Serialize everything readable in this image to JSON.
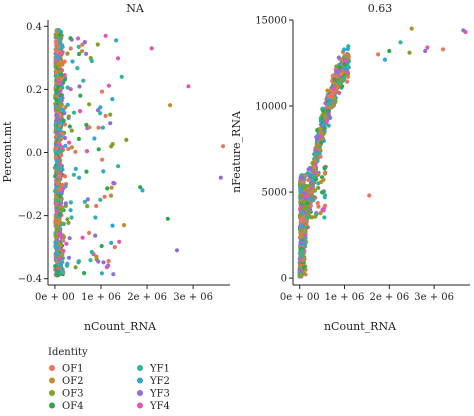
{
  "chart_data": [
    {
      "type": "scatter",
      "title": "NA",
      "xlabel": "nCount_RNA",
      "ylabel": "Percent.mt",
      "xlim": [
        -150000,
        3800000
      ],
      "ylim": [
        -0.42,
        0.42
      ],
      "xticks": [
        0,
        1000000,
        2000000,
        3000000
      ],
      "xtick_labels": [
        "0e + 00",
        "1e + 06",
        "2e + 06",
        "3e + 06"
      ],
      "yticks": [
        -0.4,
        -0.2,
        0.0,
        0.2,
        0.4
      ],
      "ytick_labels": [
        "−0.4",
        "−0.2",
        "0.0",
        "0.2",
        "0.4"
      ],
      "grid": false,
      "points": [
        {
          "x": 3650000,
          "y": 0.02,
          "group": "OF1"
        },
        {
          "x": 3600000,
          "y": -0.08,
          "group": "YF3"
        },
        {
          "x": 2900000,
          "y": 0.21,
          "group": "YF4"
        },
        {
          "x": 2650000,
          "y": -0.31,
          "group": "YF3"
        },
        {
          "x": 2500000,
          "y": 0.15,
          "group": "OF2"
        },
        {
          "x": 2450000,
          "y": -0.21,
          "group": "OF4"
        },
        {
          "x": 2100000,
          "y": 0.33,
          "group": "YF4"
        },
        {
          "x": 1900000,
          "y": -0.12,
          "group": "YF2"
        },
        {
          "x": 1850000,
          "y": -0.11,
          "group": "OF4"
        },
        {
          "x": 1550000,
          "y": 0.04,
          "group": "OF3"
        },
        {
          "x": 1500000,
          "y": -0.23,
          "group": "OF2"
        },
        {
          "x": 1450000,
          "y": 0.24,
          "group": "YF1"
        },
        {
          "x": 1300000,
          "y": -0.3,
          "group": "OF1"
        },
        {
          "x": 1200000,
          "y": 0.12,
          "group": "OF3"
        },
        {
          "x": 1100000,
          "y": 0.37,
          "group": "YF4"
        },
        {
          "x": 1050000,
          "y": -0.06,
          "group": "YF2"
        },
        {
          "x": 950000,
          "y": 0.01,
          "group": "OF4"
        },
        {
          "x": 900000,
          "y": -0.33,
          "group": "OF2"
        },
        {
          "x": 800000,
          "y": 0.29,
          "group": "YF1"
        },
        {
          "x": 750000,
          "y": 0.08,
          "group": "OF1"
        },
        {
          "x": 700000,
          "y": -0.17,
          "group": "OF3"
        },
        {
          "x": 650000,
          "y": 0.35,
          "group": "YF3"
        },
        {
          "x": 600000,
          "y": -0.27,
          "group": "YF4"
        },
        {
          "x": 550000,
          "y": 0.18,
          "group": "OF4"
        }
      ]
    },
    {
      "type": "scatter",
      "title": "0.63",
      "xlabel": "nCount_RNA",
      "ylabel": "nFeature_RNA",
      "xlim": [
        -150000,
        3800000
      ],
      "ylim": [
        -400,
        15000
      ],
      "xticks": [
        0,
        1000000,
        2000000,
        3000000
      ],
      "xtick_labels": [
        "0e + 00",
        "1e + 06",
        "2e + 06",
        "3e + 06"
      ],
      "yticks": [
        0,
        5000,
        10000,
        15000
      ],
      "ytick_labels": [
        "0",
        "5000",
        "10000",
        "15000"
      ],
      "grid": false,
      "points": [
        {
          "x": 3700000,
          "y": 14300,
          "group": "YF4"
        },
        {
          "x": 3650000,
          "y": 14400,
          "group": "YF3"
        },
        {
          "x": 3200000,
          "y": 13300,
          "group": "OF1"
        },
        {
          "x": 2850000,
          "y": 13400,
          "group": "YF4"
        },
        {
          "x": 2800000,
          "y": 13200,
          "group": "YF3"
        },
        {
          "x": 2500000,
          "y": 14500,
          "group": "OF2"
        },
        {
          "x": 2450000,
          "y": 13100,
          "group": "OF3"
        },
        {
          "x": 2250000,
          "y": 13700,
          "group": "YF1"
        },
        {
          "x": 2000000,
          "y": 13200,
          "group": "OF4"
        },
        {
          "x": 1900000,
          "y": 12700,
          "group": "YF2"
        },
        {
          "x": 1750000,
          "y": 13000,
          "group": "OF1"
        },
        {
          "x": 1550000,
          "y": 4800,
          "group": "OF1"
        }
      ]
    }
  ],
  "legend": {
    "title": "Identity",
    "placement": "bottom-left",
    "items": [
      {
        "label": "OF1",
        "color": "#E8765F"
      },
      {
        "label": "OF2",
        "color": "#C58B2A"
      },
      {
        "label": "OF3",
        "color": "#7FA12A"
      },
      {
        "label": "OF4",
        "color": "#2AA84A"
      },
      {
        "label": "YF1",
        "color": "#2FB59A"
      },
      {
        "label": "YF2",
        "color": "#2EA6D6"
      },
      {
        "label": "YF3",
        "color": "#8E6FD8"
      },
      {
        "label": "YF4",
        "color": "#E255B8"
      }
    ]
  }
}
